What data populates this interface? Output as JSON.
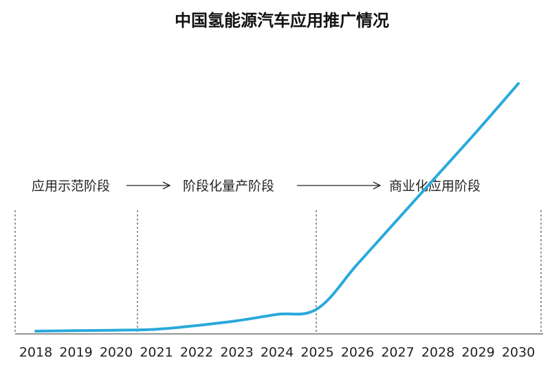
{
  "chart_data": {
    "type": "line",
    "title": "中国氢能源汽车应用推广情况",
    "xlabel": "",
    "ylabel": "",
    "categories": [
      "2018",
      "2019",
      "2020",
      "2021",
      "2022",
      "2023",
      "2024",
      "2025",
      "2026",
      "2027",
      "2028",
      "2029",
      "2030"
    ],
    "series": [
      {
        "values": [
          0,
          0.3,
          0.6,
          1.2,
          3.5,
          6.5,
          10.5,
          14,
          42,
          70,
          98,
          126,
          155
        ],
        "color": "#2aa9dc"
      }
    ],
    "ylim": [
      0,
      160
    ],
    "grid": false,
    "stages": [
      {
        "label": "应用示范阶段"
      },
      {
        "label": "阶段化量产阶段"
      },
      {
        "label": "商业化应用阶段"
      }
    ],
    "stage_boundaries": [
      "2018",
      "2021",
      "2025",
      "2030"
    ]
  },
  "colors": {
    "line": "#2aa9dc",
    "axis": "#555555",
    "divider": "#333333"
  }
}
